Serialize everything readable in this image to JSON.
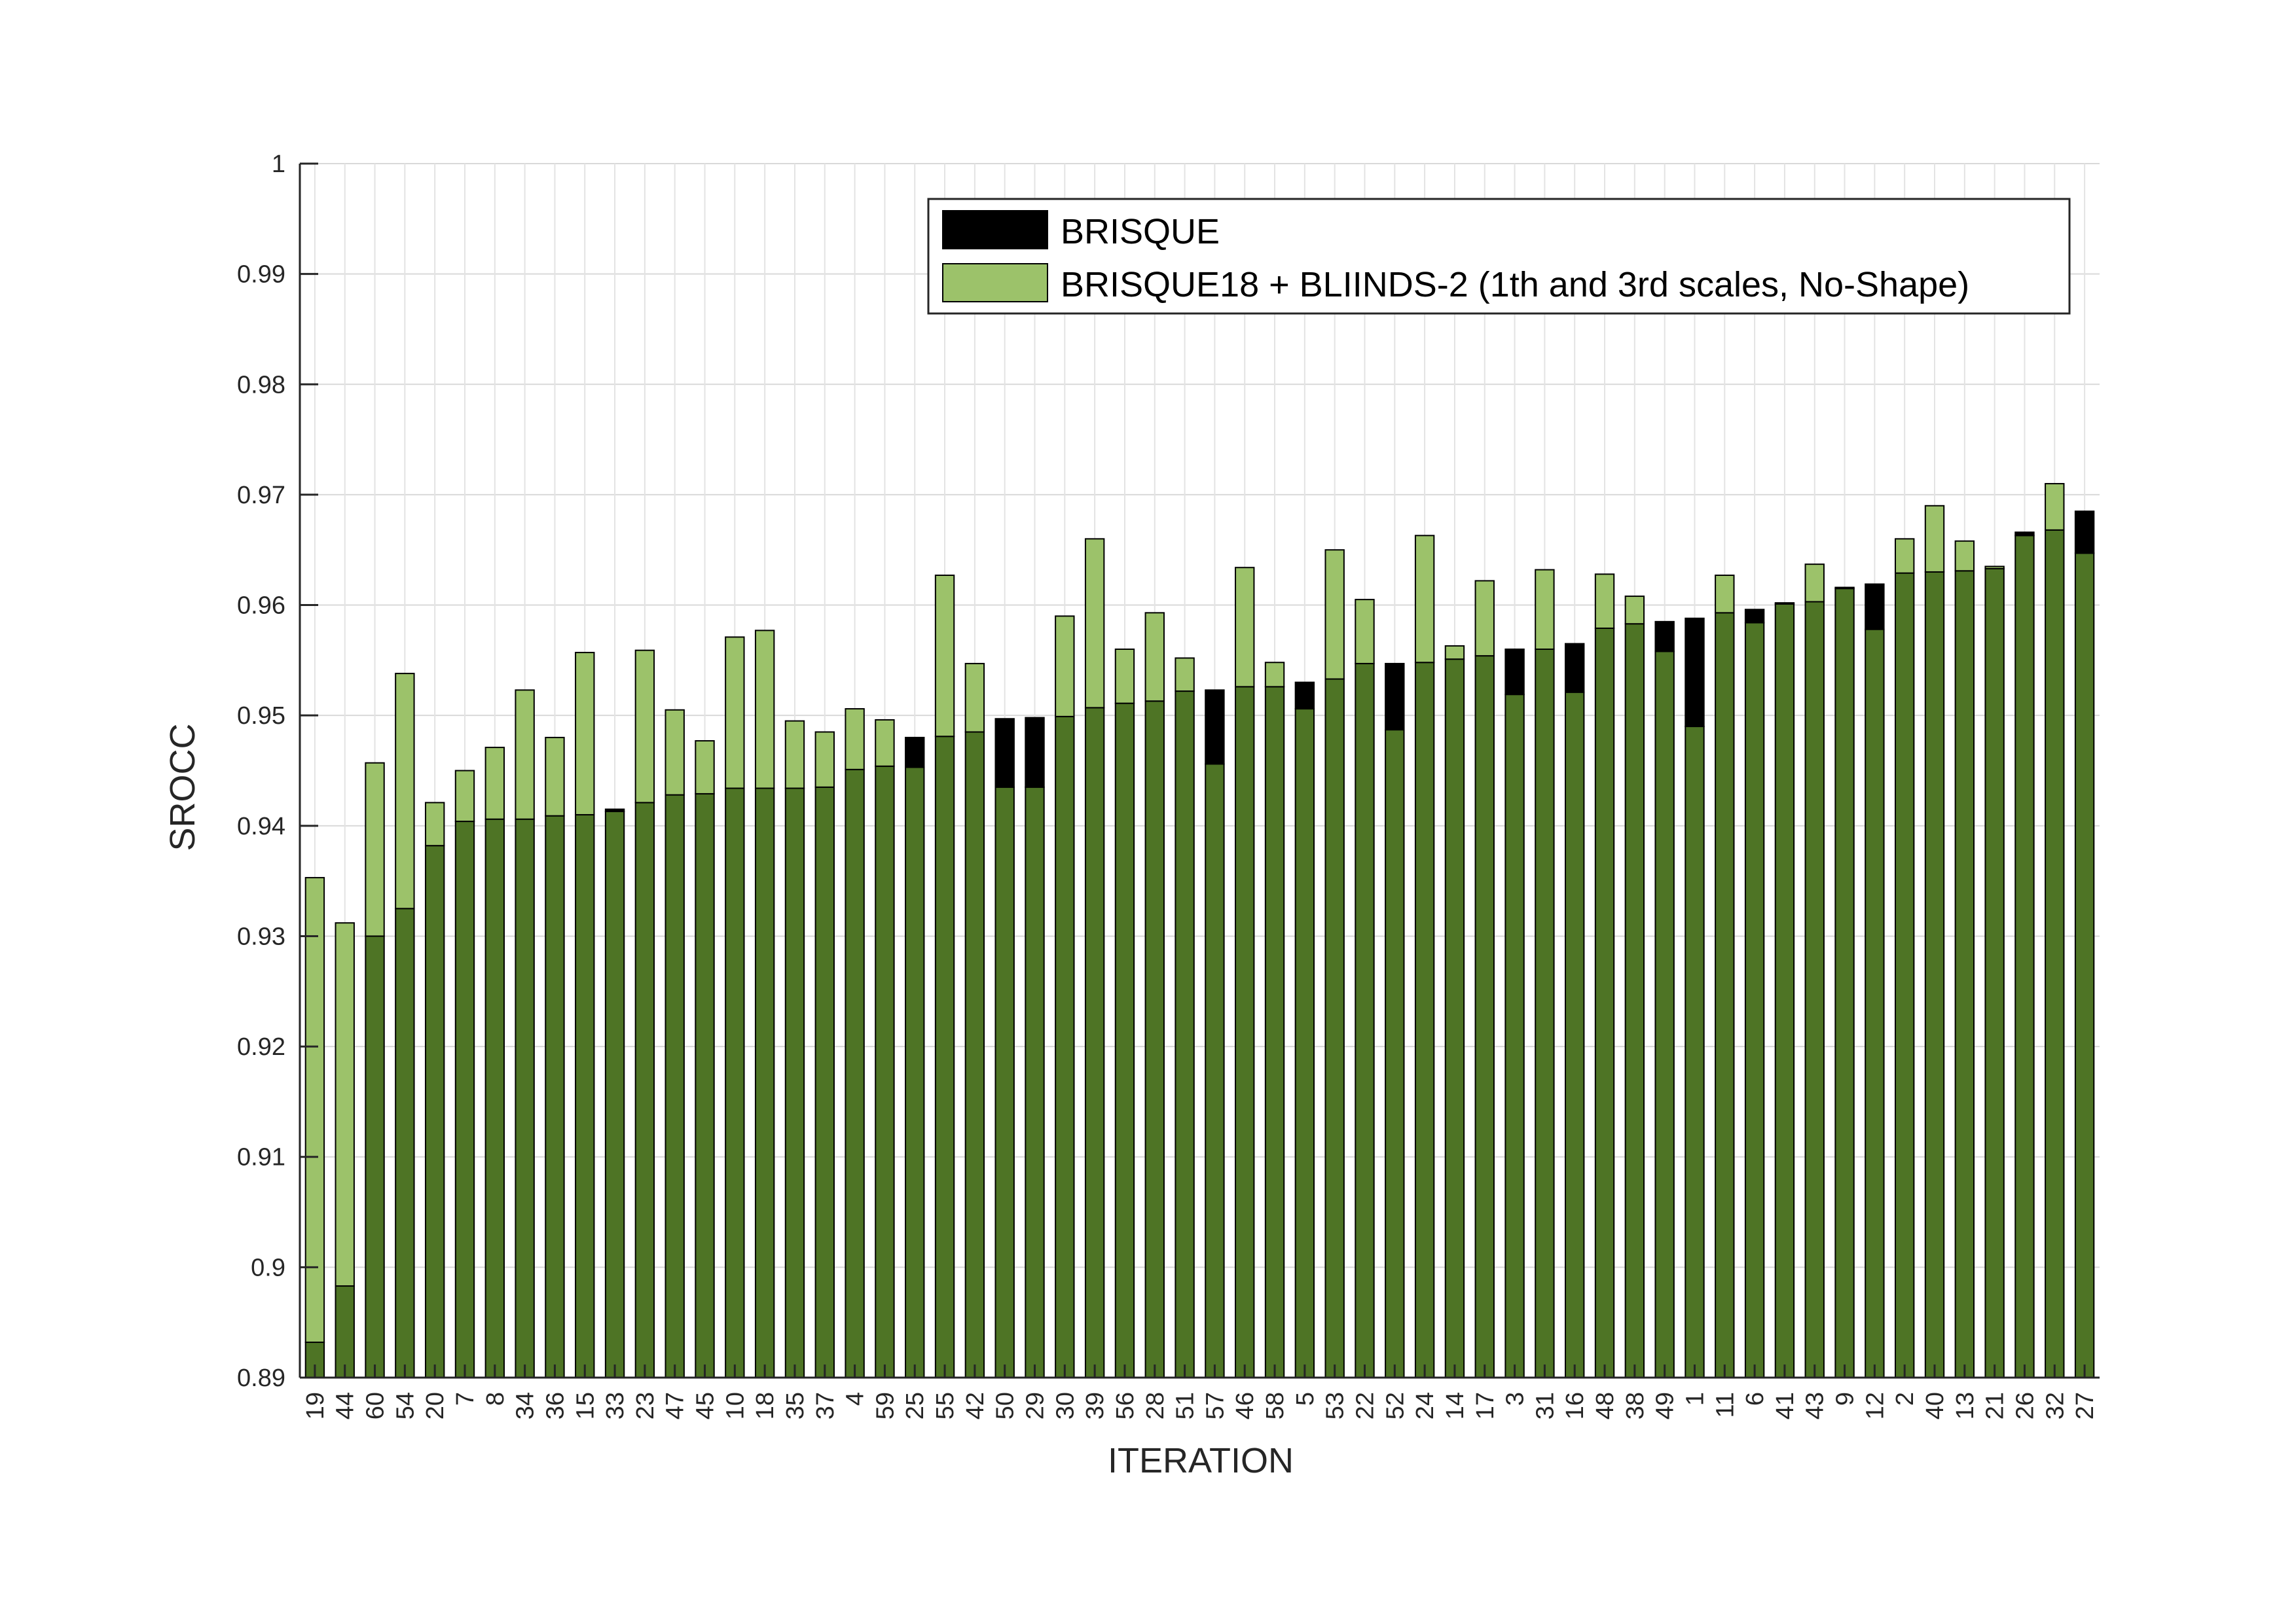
{
  "chart_data": {
    "type": "bar",
    "xlabel": "ITERATION",
    "ylabel": "SROCC",
    "ylim": [
      0.89,
      1
    ],
    "yticks": [
      "0.89",
      "0.9",
      "0.91",
      "0.92",
      "0.93",
      "0.94",
      "0.95",
      "0.96",
      "0.97",
      "0.98",
      "0.99",
      "1"
    ],
    "grid": true,
    "legend_position": "top-right",
    "overlap_color": "#4e7425",
    "categories": [
      "19",
      "44",
      "60",
      "54",
      "20",
      "7",
      "8",
      "34",
      "36",
      "15",
      "33",
      "23",
      "47",
      "45",
      "10",
      "18",
      "35",
      "37",
      "4",
      "59",
      "25",
      "55",
      "42",
      "50",
      "29",
      "30",
      "39",
      "56",
      "28",
      "51",
      "57",
      "46",
      "58",
      "5",
      "53",
      "22",
      "52",
      "24",
      "14",
      "17",
      "3",
      "31",
      "16",
      "48",
      "38",
      "49",
      "1",
      "11",
      "6",
      "41",
      "43",
      "9",
      "12",
      "2",
      "40",
      "13",
      "21",
      "26",
      "32",
      "27"
    ],
    "series": [
      {
        "name": "BRISQUE",
        "color": "#000000",
        "values": [
          0.8932,
          0.8983,
          0.93,
          0.9325,
          0.9382,
          0.9404,
          0.9406,
          0.9406,
          0.9409,
          0.941,
          0.9415,
          0.9421,
          0.9428,
          0.9429,
          0.9434,
          0.9434,
          0.9434,
          0.9435,
          0.9451,
          0.9454,
          0.948,
          0.9481,
          0.9485,
          0.9497,
          0.9498,
          0.9499,
          0.9507,
          0.9511,
          0.9513,
          0.9522,
          0.9523,
          0.9526,
          0.9526,
          0.953,
          0.9533,
          0.9547,
          0.9547,
          0.9548,
          0.9551,
          0.9554,
          0.956,
          0.956,
          0.9565,
          0.9579,
          0.9583,
          0.9585,
          0.9588,
          0.9593,
          0.9596,
          0.9601,
          0.9603,
          0.9616,
          0.9619,
          0.9629,
          0.963,
          0.9631,
          0.9633,
          0.9666,
          0.9668,
          0.9685
        ]
      },
      {
        "name": "BRISQUE18 + BLIINDS-2 (1th and 3rd scales, No-Shape)",
        "color": "#9cc26a",
        "values": [
          0.9353,
          0.9312,
          0.9457,
          0.9538,
          0.9421,
          0.945,
          0.9471,
          0.9523,
          0.948,
          0.9557,
          0.9413,
          0.9559,
          0.9505,
          0.9477,
          0.9571,
          0.9577,
          0.9495,
          0.9485,
          0.9506,
          0.9496,
          0.9453,
          0.9627,
          0.9547,
          0.9435,
          0.9435,
          0.959,
          0.966,
          0.956,
          0.9593,
          0.9552,
          0.9456,
          0.9634,
          0.9548,
          0.9506,
          0.965,
          0.9605,
          0.9487,
          0.9663,
          0.9563,
          0.9622,
          0.9519,
          0.9632,
          0.9521,
          0.9628,
          0.9608,
          0.9558,
          0.949,
          0.9627,
          0.9584,
          0.9602,
          0.9637,
          0.9615,
          0.9578,
          0.966,
          0.969,
          0.9658,
          0.9635,
          0.9663,
          0.971,
          0.9647
        ]
      }
    ]
  }
}
